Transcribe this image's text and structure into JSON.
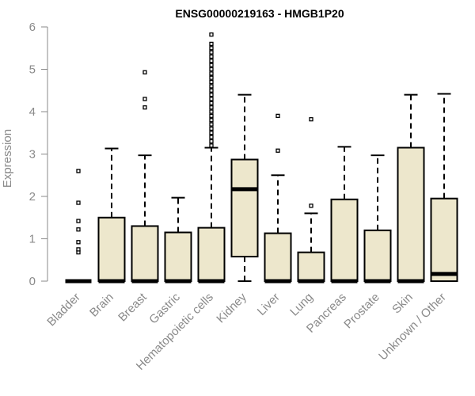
{
  "chart_data": {
    "type": "boxplot",
    "title": "ENSG00000219163 - HMGB1P20",
    "xlabel": "",
    "ylabel": "Expression",
    "ylim": [
      0,
      6
    ],
    "yticks": [
      0,
      1,
      2,
      3,
      4,
      5,
      6
    ],
    "box_fill": "#ede7cc",
    "axis_color": "#8a8a8a",
    "categories": [
      "Bladder",
      "Brain",
      "Breast",
      "Gastric",
      "Hematopoietic cells",
      "Kidney",
      "Liver",
      "Lung",
      "Pancreas",
      "Prostate",
      "Skin",
      "Unknown / Other"
    ],
    "boxes": [
      {
        "min": 0,
        "q1": 0,
        "median": 0,
        "q3": 0,
        "max": 0,
        "outliers": [
          0.68,
          0.75,
          0.92,
          1.22,
          1.42,
          1.85,
          2.6
        ]
      },
      {
        "min": 0,
        "q1": 0,
        "median": 0,
        "q3": 1.5,
        "max": 3.13,
        "outliers": []
      },
      {
        "min": 0,
        "q1": 0,
        "median": 0,
        "q3": 1.3,
        "max": 2.97,
        "outliers": [
          4.1,
          4.3,
          4.93
        ]
      },
      {
        "min": 0,
        "q1": 0,
        "median": 0,
        "q3": 1.15,
        "max": 1.97,
        "outliers": []
      },
      {
        "min": 0,
        "q1": 0,
        "median": 0,
        "q3": 1.26,
        "max": 3.15,
        "outliers": [
          3.2,
          3.3,
          3.4,
          3.5,
          3.6,
          3.7,
          3.8,
          3.9,
          4.0,
          4.1,
          4.2,
          4.3,
          4.4,
          4.5,
          4.6,
          4.7,
          4.8,
          4.9,
          5.0,
          5.1,
          5.2,
          5.3,
          5.4,
          5.5,
          5.6,
          5.82
        ]
      },
      {
        "min": 0,
        "q1": 0.58,
        "median": 2.17,
        "q3": 2.87,
        "max": 4.4,
        "outliers": []
      },
      {
        "min": 0,
        "q1": 0,
        "median": 0,
        "q3": 1.13,
        "max": 2.5,
        "outliers": [
          3.08,
          3.9
        ]
      },
      {
        "min": 0,
        "q1": 0,
        "median": 0,
        "q3": 0.68,
        "max": 1.6,
        "outliers": [
          1.78,
          3.82
        ]
      },
      {
        "min": 0,
        "q1": 0,
        "median": 0,
        "q3": 1.93,
        "max": 3.17,
        "outliers": []
      },
      {
        "min": 0,
        "q1": 0,
        "median": 0,
        "q3": 1.2,
        "max": 2.97,
        "outliers": []
      },
      {
        "min": 0,
        "q1": 0,
        "median": 0,
        "q3": 3.15,
        "max": 4.4,
        "outliers": []
      },
      {
        "min": 0,
        "q1": 0,
        "median": 0.17,
        "q3": 1.95,
        "max": 4.42,
        "outliers": []
      }
    ]
  }
}
